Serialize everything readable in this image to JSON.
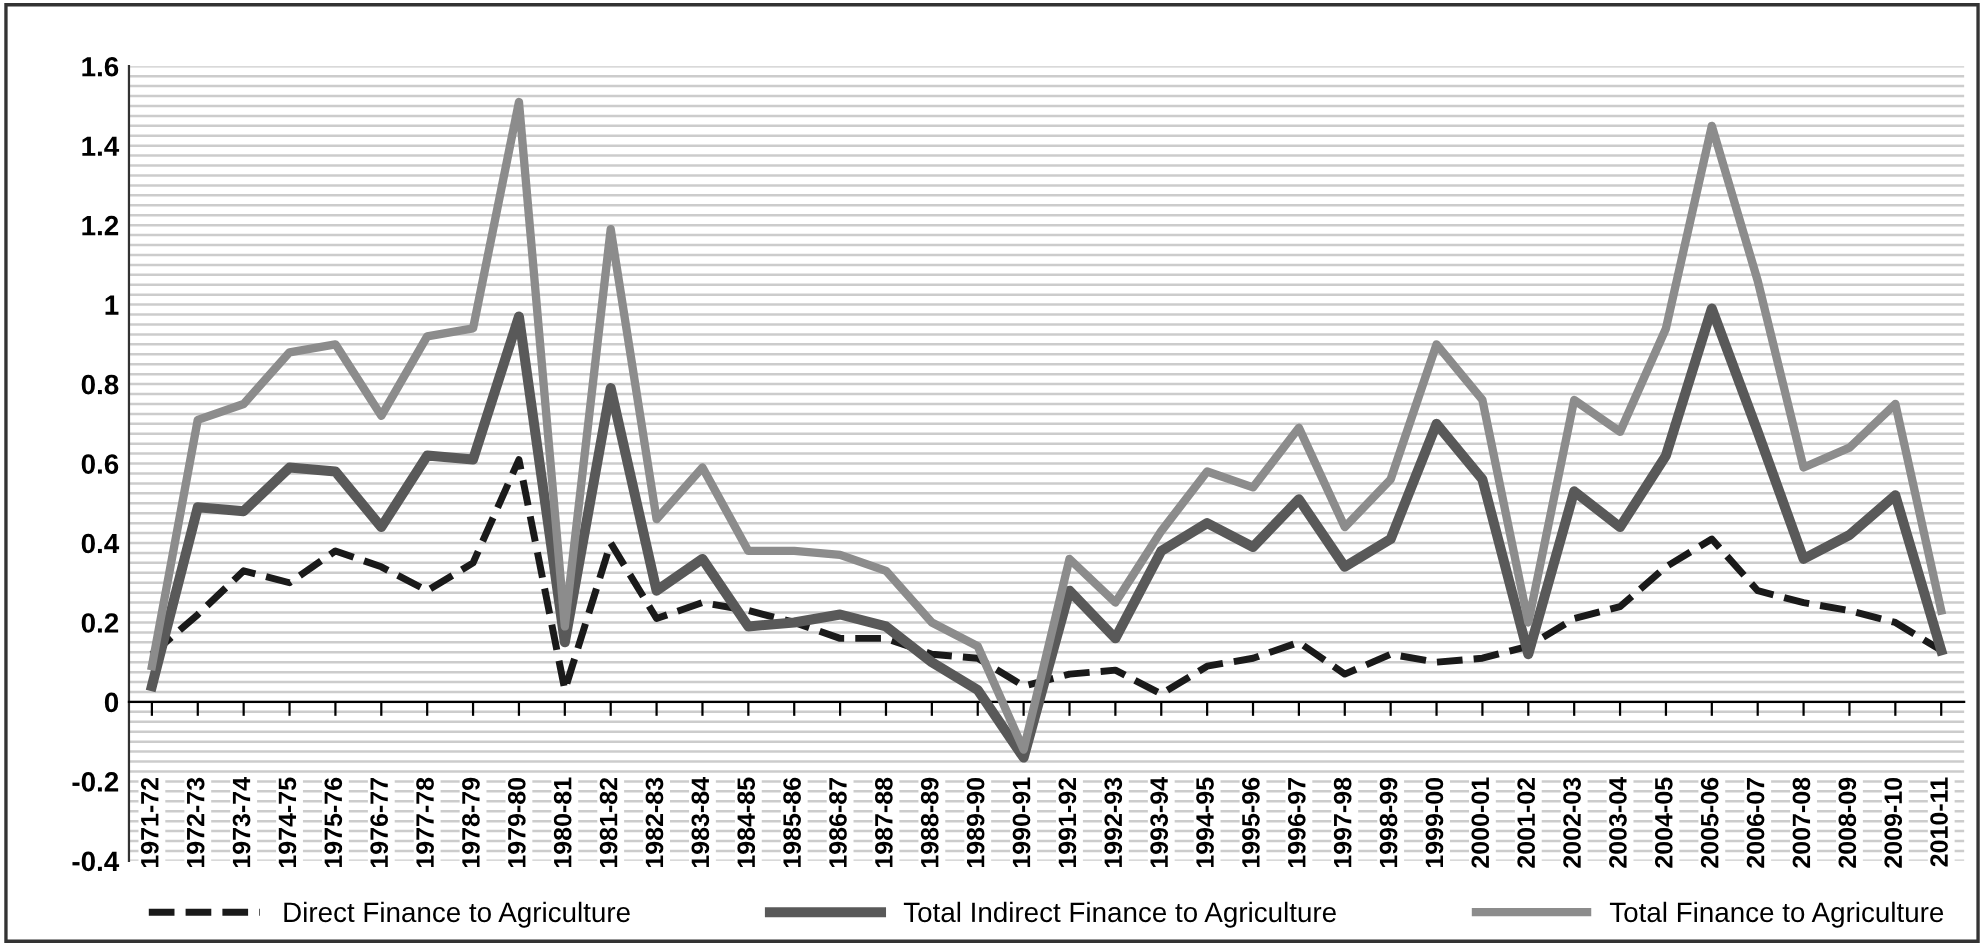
{
  "chart_data": {
    "type": "line",
    "categories": [
      "1971-72",
      "1972-73",
      "1973-74",
      "1974-75",
      "1975-76",
      "1976-77",
      "1977-78",
      "1978-79",
      "1979-80",
      "1980-81",
      "1981-82",
      "1982-83",
      "1983-84",
      "1984-85",
      "1985-86",
      "1986-87",
      "1987-88",
      "1988-89",
      "1989-90",
      "1990-91",
      "1991-92",
      "1992-93",
      "1993-94",
      "1994-95",
      "1995-96",
      "1996-97",
      "1997-98",
      "1998-99",
      "1999-00",
      "2000-01",
      "2001-02",
      "2002-03",
      "2003-04",
      "2004-05",
      "2005-06",
      "2006-07",
      "2007-08",
      "2008-09",
      "2009-10",
      "2010-11"
    ],
    "series": [
      {
        "name": "Direct Finance to Agriculture",
        "color": "#1a1a1a",
        "line_style": "dashed",
        "values": [
          0.12,
          0.22,
          0.33,
          0.3,
          0.38,
          0.34,
          0.28,
          0.35,
          0.61,
          0.03,
          0.4,
          0.21,
          0.25,
          0.23,
          0.2,
          0.16,
          0.16,
          0.12,
          0.11,
          0.04,
          0.07,
          0.08,
          0.02,
          0.09,
          0.11,
          0.15,
          0.07,
          0.12,
          0.1,
          0.11,
          0.14,
          0.21,
          0.24,
          0.34,
          0.41,
          0.28,
          0.25,
          0.23,
          0.2,
          0.13
        ]
      },
      {
        "name": "Total Indirect Finance to Agriculture",
        "color": "#595959",
        "line_style": "solid",
        "values": [
          0.04,
          0.49,
          0.48,
          0.59,
          0.58,
          0.44,
          0.62,
          0.61,
          0.97,
          0.15,
          0.79,
          0.28,
          0.36,
          0.19,
          0.2,
          0.22,
          0.19,
          0.1,
          0.03,
          -0.14,
          0.28,
          0.16,
          0.38,
          0.45,
          0.39,
          0.51,
          0.34,
          0.41,
          0.7,
          0.56,
          0.12,
          0.53,
          0.44,
          0.62,
          0.99,
          0.68,
          0.36,
          0.42,
          0.52,
          0.13
        ]
      },
      {
        "name": "Total Finance to Agriculture",
        "color": "#8c8c8c",
        "line_style": "solid",
        "values": [
          0.09,
          0.71,
          0.75,
          0.88,
          0.9,
          0.72,
          0.92,
          0.94,
          1.51,
          0.19,
          1.19,
          0.46,
          0.59,
          0.38,
          0.38,
          0.37,
          0.33,
          0.2,
          0.14,
          -0.12,
          0.36,
          0.25,
          0.43,
          0.58,
          0.54,
          0.69,
          0.44,
          0.56,
          0.9,
          0.76,
          0.2,
          0.76,
          0.68,
          0.94,
          1.45,
          1.06,
          0.59,
          0.64,
          0.75,
          0.23
        ]
      }
    ],
    "ylim": [
      -0.4,
      1.6
    ],
    "yticks": [
      -0.4,
      -0.2,
      0,
      0.2,
      0.4,
      0.6,
      0.8,
      1,
      1.2,
      1.4,
      1.6
    ],
    "grid": "y",
    "legend": "bottom",
    "marker": "none"
  }
}
